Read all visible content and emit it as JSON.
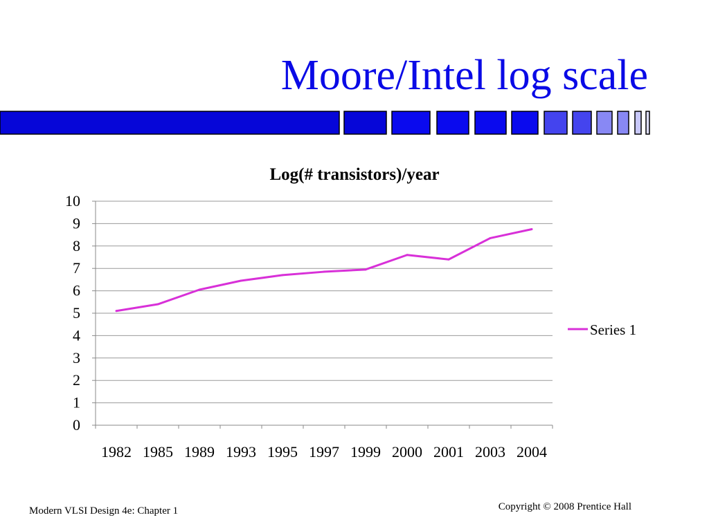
{
  "slide": {
    "title": "Moore/Intel log scale"
  },
  "footer": {
    "left": "Modern VLSI Design 4e: Chapter 1",
    "right": "Copyright © 2008 Prentice Hall"
  },
  "colors": {
    "title": "#0a0ae6",
    "bar_primary": "#0606d8",
    "bar_light": "#4444ee",
    "bar_lighter": "#8888f4",
    "series": "#d830d8",
    "grid": "#999999"
  },
  "chart_data": {
    "type": "line",
    "title": "Log(# transistors)/year",
    "xlabel": "",
    "ylabel": "",
    "categories": [
      "1982",
      "1985",
      "1989",
      "1993",
      "1995",
      "1997",
      "1999",
      "2000",
      "2001",
      "2003",
      "2004"
    ],
    "series": [
      {
        "name": "Series 1",
        "color": "#d830d8",
        "values": [
          5.1,
          5.4,
          6.05,
          6.45,
          6.7,
          6.85,
          6.95,
          7.6,
          7.4,
          8.35,
          8.75
        ]
      }
    ],
    "ylim": [
      0,
      10
    ],
    "yticks": [
      "0",
      "1",
      "2",
      "3",
      "4",
      "5",
      "6",
      "7",
      "8",
      "9",
      "10"
    ],
    "grid": true,
    "legend": "right"
  }
}
